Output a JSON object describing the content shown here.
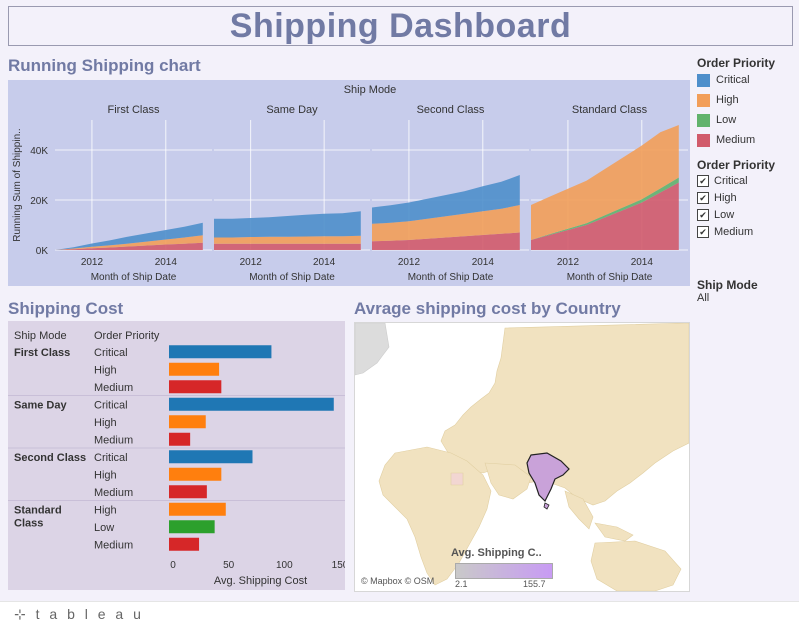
{
  "title": "Shipping Dashboard",
  "sections": {
    "running": "Running Shipping chart",
    "cost": "Shipping Cost",
    "map": "Avrage shipping cost by Country"
  },
  "legend": {
    "color_title": "Order Priority",
    "items": [
      {
        "label": "Critical",
        "color": "#4e8fcb"
      },
      {
        "label": "High",
        "color": "#f29e59"
      },
      {
        "label": "Low",
        "color": "#62b36c"
      },
      {
        "label": "Medium",
        "color": "#d15b6b"
      }
    ],
    "filter_title": "Order Priority",
    "filter_items": [
      "Critical",
      "High",
      "Low",
      "Medium"
    ],
    "shipmode_title": "Ship Mode",
    "shipmode_value": "All"
  },
  "map": {
    "legend_title": "Avg. Shipping C..",
    "legend_min": "2.1",
    "legend_max": "155.7",
    "attribution": "© Mapbox © OSM"
  },
  "footer": {
    "logo_text": "⊹ t a b l e a u"
  },
  "chart_data": [
    {
      "type": "area",
      "title": "Running Shipping chart",
      "column_header": "Ship Mode",
      "panels": [
        "First Class",
        "Same Day",
        "Second Class",
        "Standard Class"
      ],
      "xlabel": "Month of Ship Date",
      "ylabel": "Running Sum of Shippin..",
      "x_ticks": [
        "2012",
        "2014"
      ],
      "y_ticks": [
        "0K",
        "20K",
        "40K"
      ],
      "ylim": [
        0,
        52000
      ],
      "stacked": true,
      "series_order_bottom_to_top": [
        "Medium",
        "Low",
        "High",
        "Critical"
      ],
      "series": [
        {
          "name": "First Class",
          "x": [
            2011.0,
            2011.5,
            2012.0,
            2012.5,
            2013.0,
            2013.5,
            2014.0,
            2014.5,
            2015.0
          ],
          "Medium": [
            0,
            300,
            700,
            1000,
            1400,
            1800,
            2200,
            2500,
            2900
          ],
          "Low": [
            0,
            0,
            0,
            0,
            0,
            0,
            0,
            0,
            0
          ],
          "High": [
            0,
            300,
            600,
            900,
            1200,
            1600,
            2000,
            2500,
            3000
          ],
          "Critical": [
            0,
            500,
            1300,
            2000,
            2800,
            3300,
            3800,
            4300,
            5000
          ]
        },
        {
          "name": "Same Day",
          "x": [
            2011.0,
            2011.5,
            2012.0,
            2012.5,
            2013.0,
            2013.5,
            2014.0,
            2014.5,
            2015.0
          ],
          "Medium": [
            2500,
            2500,
            2500,
            2500,
            2500,
            2500,
            2500,
            2500,
            2500
          ],
          "Low": [
            0,
            0,
            0,
            0,
            0,
            0,
            0,
            0,
            0
          ],
          "High": [
            2500,
            2500,
            2700,
            2800,
            2800,
            2900,
            3000,
            3000,
            3200
          ],
          "Critical": [
            7500,
            7500,
            7600,
            7800,
            8300,
            8700,
            9000,
            9200,
            9800
          ]
        },
        {
          "name": "Second Class",
          "x": [
            2011.0,
            2011.5,
            2012.0,
            2012.5,
            2013.0,
            2013.5,
            2014.0,
            2014.5,
            2015.0
          ],
          "Medium": [
            3500,
            3700,
            4000,
            4500,
            5000,
            5500,
            6000,
            6500,
            7000
          ],
          "Low": [
            0,
            0,
            0,
            0,
            0,
            0,
            0,
            0,
            0
          ],
          "High": [
            7000,
            7200,
            7500,
            8000,
            8500,
            9000,
            9500,
            10000,
            11000
          ],
          "Critical": [
            6500,
            7000,
            7500,
            8000,
            8500,
            9000,
            10000,
            10800,
            12000
          ]
        },
        {
          "name": "Standard Class",
          "x": [
            2011.0,
            2011.5,
            2012.0,
            2012.5,
            2013.0,
            2013.5,
            2014.0,
            2014.5,
            2015.0
          ],
          "Medium": [
            4000,
            6000,
            8000,
            10000,
            13000,
            16000,
            19000,
            23000,
            27000
          ],
          "Low": [
            0,
            300,
            500,
            700,
            900,
            1100,
            1300,
            1600,
            2000
          ],
          "High": [
            14000,
            15000,
            16000,
            17000,
            18500,
            20000,
            21500,
            22500,
            21000
          ],
          "Critical": [
            0,
            0,
            0,
            0,
            0,
            0,
            0,
            0,
            0
          ]
        }
      ]
    },
    {
      "type": "bar",
      "title": "Shipping Cost",
      "headers": [
        "Ship Mode",
        "Order Priority"
      ],
      "xlabel": "Avg. Shipping Cost",
      "x_ticks": [
        "0",
        "50",
        "100",
        "150"
      ],
      "xlim": [
        0,
        150
      ],
      "rows": [
        {
          "mode": "First Class",
          "priority": "Critical",
          "value": 92,
          "color": "#1f77b4"
        },
        {
          "mode": "",
          "priority": "High",
          "value": 45,
          "color": "#ff7f0e"
        },
        {
          "mode": "",
          "priority": "Medium",
          "value": 47,
          "color": "#d62728"
        },
        {
          "mode": "Same Day",
          "priority": "Critical",
          "value": 148,
          "color": "#1f77b4"
        },
        {
          "mode": "",
          "priority": "High",
          "value": 33,
          "color": "#ff7f0e"
        },
        {
          "mode": "",
          "priority": "Medium",
          "value": 19,
          "color": "#d62728"
        },
        {
          "mode": "Second Class",
          "priority": "Critical",
          "value": 75,
          "color": "#1f77b4"
        },
        {
          "mode": "",
          "priority": "High",
          "value": 47,
          "color": "#ff7f0e"
        },
        {
          "mode": "",
          "priority": "Medium",
          "value": 34,
          "color": "#d62728"
        },
        {
          "mode": "Standard Class",
          "priority": "High",
          "value": 51,
          "color": "#ff7f0e"
        },
        {
          "mode": "",
          "priority": "Low",
          "value": 41,
          "color": "#2ca02c"
        },
        {
          "mode": "",
          "priority": "Medium",
          "value": 27,
          "color": "#d62728"
        }
      ]
    }
  ]
}
